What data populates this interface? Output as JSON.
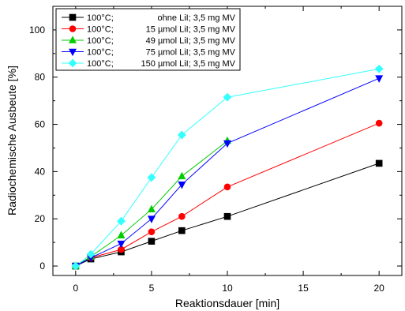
{
  "chart_data": {
    "type": "line",
    "xlabel": "Reaktionsdauer [min]",
    "ylabel": "Radiochemische Ausbeute [%]",
    "xlim": [
      -1.5,
      21.5
    ],
    "ylim": [
      -4,
      110
    ],
    "xticks": [
      0,
      5,
      10,
      15,
      20
    ],
    "yticks": [
      0,
      20,
      40,
      60,
      80,
      100
    ],
    "grid": false,
    "legend_position": "top-left",
    "series": [
      {
        "name": "100°C;      ohne LiI; 3,5 mg MV",
        "legend_cols": [
          "100°C;",
          "ohne LiI; 3,5 mg MV"
        ],
        "color": "#000000",
        "marker": "square",
        "x": [
          0,
          1,
          3,
          5,
          7,
          10,
          20
        ],
        "y": [
          0,
          3,
          6,
          10.5,
          15,
          21,
          43.5
        ]
      },
      {
        "name": "100°C;   15 µmol LiI; 3,5 mg MV",
        "legend_cols": [
          "100°C;",
          "15 µmol LiI; 3,5 mg MV"
        ],
        "color": "#ff0000",
        "marker": "circle",
        "x": [
          0,
          1,
          3,
          5,
          7,
          10,
          20
        ],
        "y": [
          0,
          3.5,
          7,
          14.5,
          21,
          33.5,
          60.5
        ]
      },
      {
        "name": "100°C;   49 µmol LiI; 3,5 mg MV",
        "legend_cols": [
          "100°C;",
          "49 µmol LiI; 3,5 mg MV"
        ],
        "color": "#00cc00",
        "marker": "triangle-up",
        "x": [
          0,
          1,
          3,
          5,
          7,
          10
        ],
        "y": [
          0,
          4,
          13,
          24,
          38,
          53
        ]
      },
      {
        "name": "100°C;   75 µmol LiI; 3,5 mg MV",
        "legend_cols": [
          "100°C;",
          "75 µmol LiI; 3,5 mg MV"
        ],
        "color": "#0000ff",
        "marker": "triangle-down",
        "x": [
          0,
          1,
          3,
          5,
          7,
          10,
          20
        ],
        "y": [
          0,
          3.5,
          9.5,
          20,
          34.5,
          52,
          79.5
        ]
      },
      {
        "name": "100°C; 150 µmol LiI; 3,5 mg MV",
        "legend_cols": [
          "100°C;",
          "150 µmol LiI; 3,5 mg MV"
        ],
        "color": "#33ffff",
        "marker": "diamond",
        "x": [
          0,
          1,
          3,
          5,
          7,
          10,
          20
        ],
        "y": [
          0,
          5,
          19,
          37.5,
          55.5,
          71.5,
          83.5
        ]
      }
    ]
  }
}
